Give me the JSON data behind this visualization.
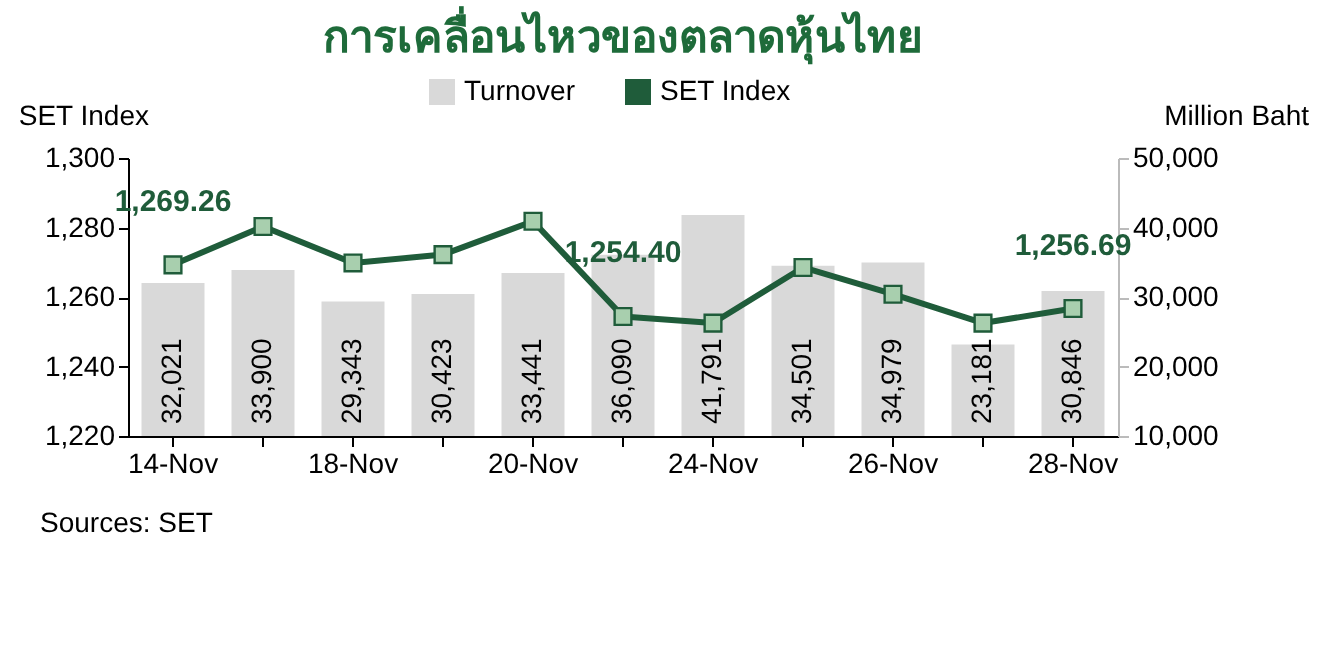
{
  "chart_data": {
    "type": "bar",
    "title": "การเคลื่อนไหวของตลาดหุ้นไทย",
    "categories": [
      "14-Nov",
      null,
      "18-Nov",
      null,
      "20-Nov",
      null,
      "24-Nov",
      null,
      "26-Nov",
      null,
      "28-Nov"
    ],
    "series": [
      {
        "name": "Turnover",
        "type": "bar",
        "axis": "y2",
        "color": "#d9d9d9",
        "values": [
          32021,
          33900,
          29343,
          30423,
          33441,
          36090,
          41791,
          34501,
          34979,
          23181,
          30846
        ],
        "value_labels": [
          "32,021",
          "33,900",
          "29,343",
          "30,423",
          "33,441",
          "36,090",
          "41,791",
          "34,501",
          "34,979",
          "23,181",
          "30,846"
        ]
      },
      {
        "name": "SET Index",
        "type": "line",
        "color": "#1f5c3a",
        "marker": "square",
        "values": [
          1269.26,
          1280.3,
          1269.8,
          1272.2,
          1281.8,
          1254.4,
          1252.5,
          1268.5,
          1260.8,
          1252.5,
          1256.69
        ],
        "value_labels": [
          "1,269.26",
          null,
          null,
          null,
          null,
          "1,254.40",
          null,
          null,
          null,
          null,
          "1,256.69"
        ]
      }
    ],
    "ylabel": "SET Index",
    "y2label": "Million Baht",
    "ylim": [
      1220,
      1300
    ],
    "yticks": [
      {
        "value": 1220,
        "label": "1,220"
      },
      {
        "value": 1240,
        "label": "1,240"
      },
      {
        "value": 1260,
        "label": "1,260"
      },
      {
        "value": 1280,
        "label": "1,280"
      },
      {
        "value": 1300,
        "label": "1,300"
      }
    ],
    "y2lim": [
      10000,
      50000
    ],
    "y2ticks": [
      {
        "value": 10000,
        "label": "10,000"
      },
      {
        "value": 20000,
        "label": "20,000"
      },
      {
        "value": 30000,
        "label": "30,000"
      },
      {
        "value": 40000,
        "label": "40,000"
      },
      {
        "value": 50000,
        "label": "50,000"
      }
    ],
    "legend": "top",
    "grid": false,
    "annotations": [
      "Sources: SET"
    ]
  }
}
